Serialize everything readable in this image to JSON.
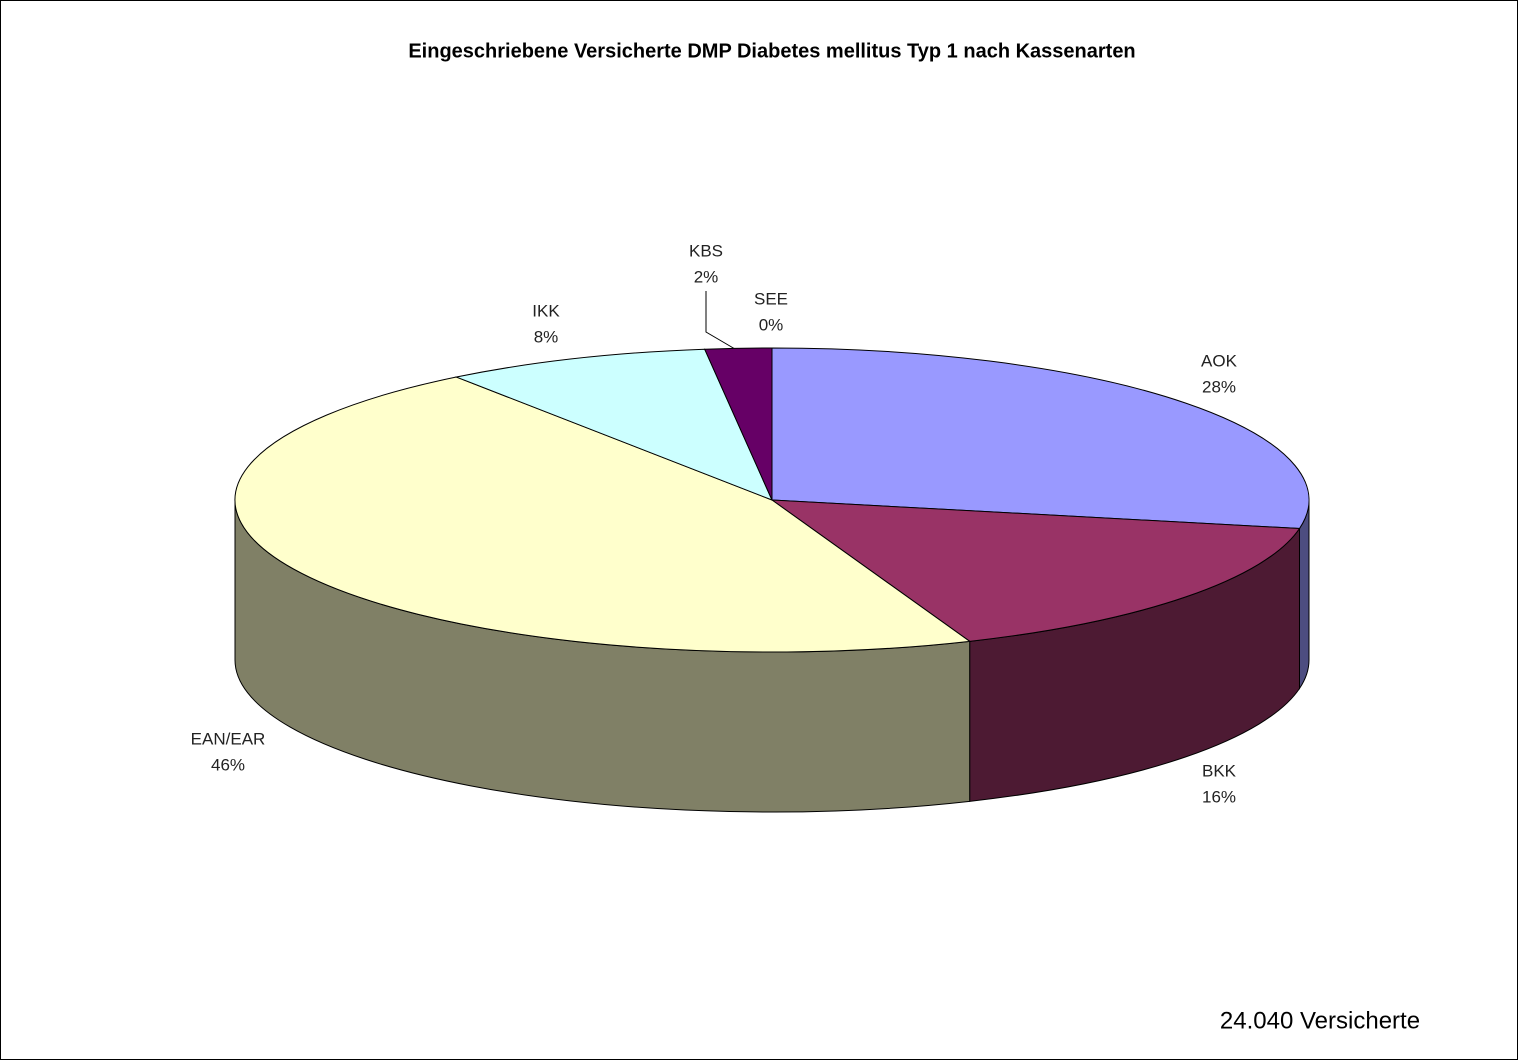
{
  "chart_data": {
    "type": "pie",
    "title": "Eingeschriebene Versicherte DMP Diabetes mellitus Typ 1 nach Kassenarten",
    "categories": [
      "AOK",
      "BKK",
      "EAN/EAR",
      "IKK",
      "KBS",
      "SEE"
    ],
    "values": [
      28,
      16,
      46,
      8,
      2,
      0
    ],
    "value_labels": [
      "28%",
      "16%",
      "46%",
      "8%",
      "2%",
      "0%"
    ],
    "colors": [
      "#9999ff",
      "#993366",
      "#ffffcc",
      "#ccffff",
      "#660066",
      "#ff8080"
    ],
    "annotation": "24.040 Versicherte"
  }
}
